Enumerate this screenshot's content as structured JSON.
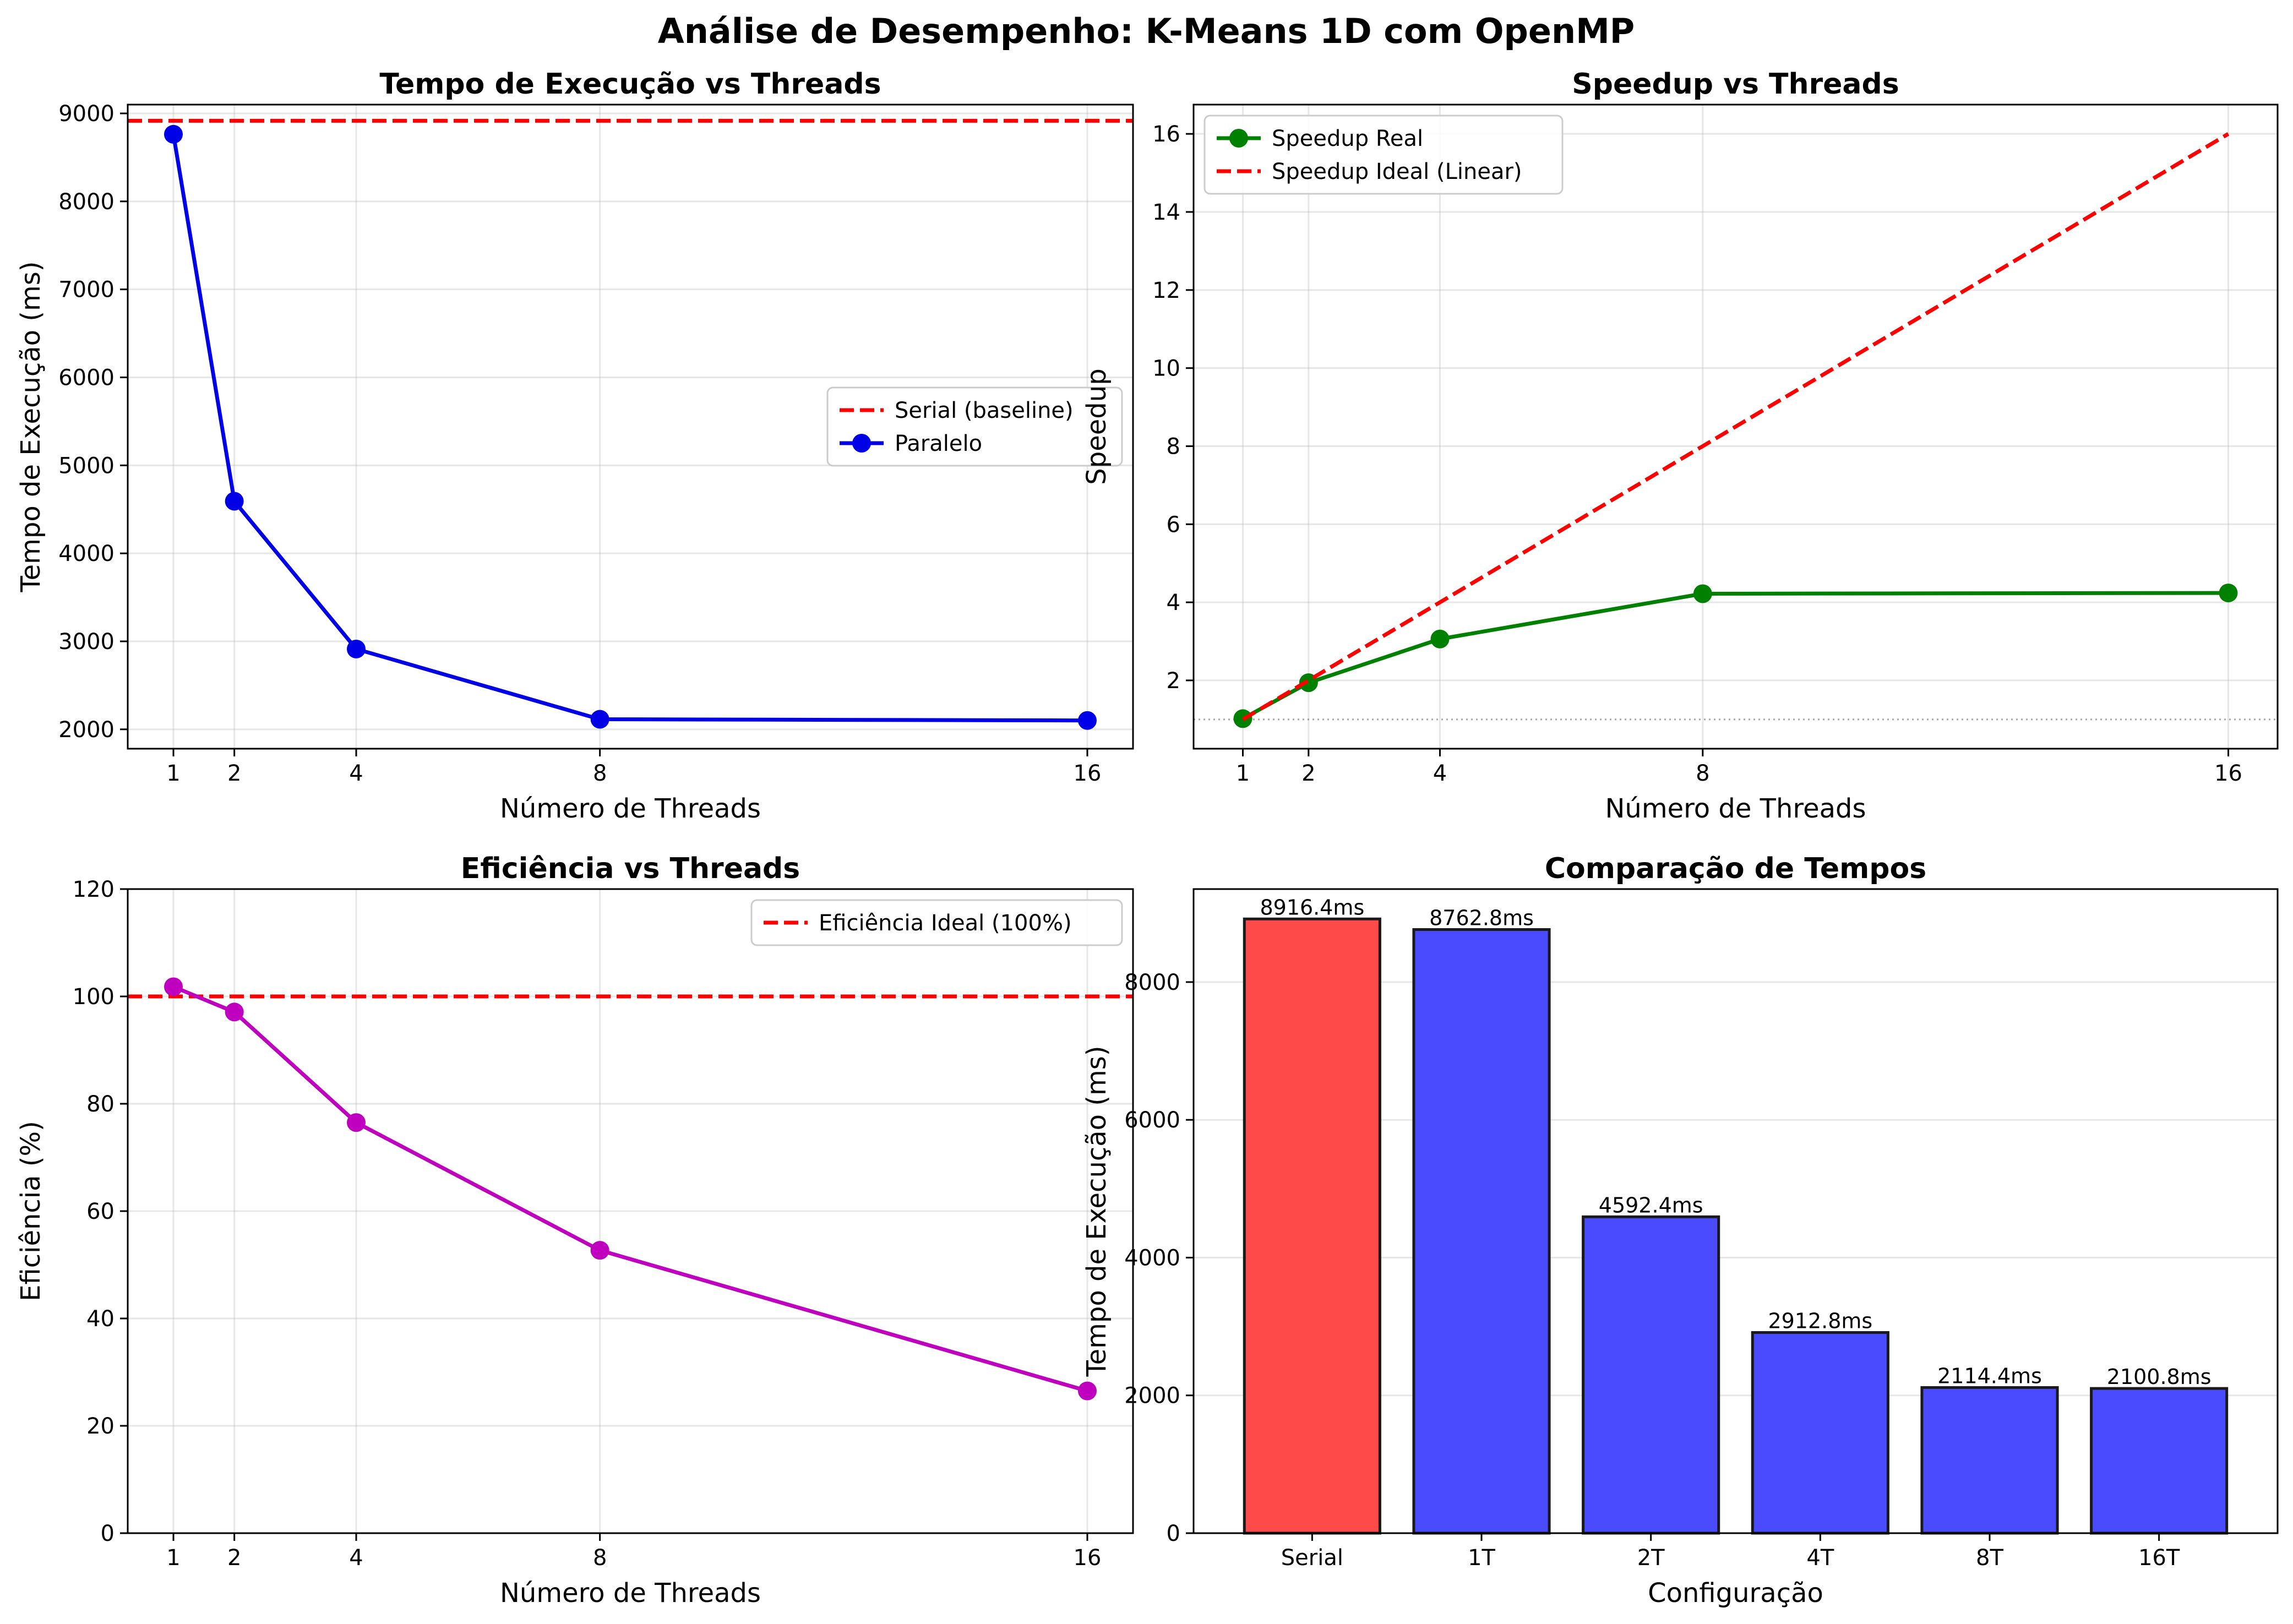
{
  "suptitle": "Análise de Desempenho: K-Means 1D com OpenMP",
  "colors": {
    "paralelo": "#0000e6",
    "serial": "#ff0000",
    "speedup": "#008000",
    "eficiencia": "#bf00bf",
    "bar_serial": "#ff4a4a",
    "bar_parallel": "#4a4aff"
  },
  "chart_data": [
    {
      "type": "line",
      "title": "Tempo de Execução vs Threads",
      "xlabel": "Número de Threads",
      "ylabel": "Tempo de Execução (ms)",
      "x": [
        1,
        2,
        4,
        8,
        16
      ],
      "xticks": [
        1,
        2,
        4,
        8,
        16
      ],
      "xlim": [
        0.25,
        16.75
      ],
      "ylim": [
        1780,
        9100
      ],
      "yticks": [
        2000,
        3000,
        4000,
        5000,
        6000,
        7000,
        8000,
        9000
      ],
      "grid": true,
      "legend_position": "center-right",
      "series": [
        {
          "name": "Paralelo",
          "values": [
            8762.8,
            4592.4,
            2912.8,
            2114.4,
            2100.8
          ],
          "style": "line-marker",
          "color": "#0000e6"
        }
      ],
      "hlines": [
        {
          "name": "Serial (baseline)",
          "y": 8916.4,
          "style": "dashed",
          "color": "#ff0000"
        }
      ]
    },
    {
      "type": "line",
      "title": "Speedup vs Threads",
      "xlabel": "Número de Threads",
      "ylabel": "Speedup",
      "x": [
        1,
        2,
        4,
        8,
        16
      ],
      "xticks": [
        1,
        2,
        4,
        8,
        16
      ],
      "xlim": [
        0.25,
        16.75
      ],
      "ylim": [
        0.25,
        16.75
      ],
      "yticks": [
        2,
        4,
        6,
        8,
        10,
        12,
        14,
        16
      ],
      "grid": true,
      "legend_position": "top-left",
      "series": [
        {
          "name": "Speedup Real",
          "values": [
            1.02,
            1.94,
            3.06,
            4.22,
            4.24
          ],
          "style": "line-marker",
          "color": "#008000"
        },
        {
          "name": "Speedup Ideal (Linear)",
          "values": [
            1,
            2,
            4,
            8,
            16
          ],
          "style": "dashed",
          "color": "#ff0000"
        }
      ],
      "hlines": [
        {
          "y": 1,
          "style": "dotted",
          "color": "#808080"
        }
      ]
    },
    {
      "type": "line",
      "title": "Eficiência vs Threads",
      "xlabel": "Número de Threads",
      "ylabel": "Eficiência (%)",
      "x": [
        1,
        2,
        4,
        8,
        16
      ],
      "xticks": [
        1,
        2,
        4,
        8,
        16
      ],
      "xlim": [
        0.25,
        16.75
      ],
      "ylim": [
        0,
        120
      ],
      "yticks": [
        0,
        20,
        40,
        60,
        80,
        100,
        120
      ],
      "grid": true,
      "legend_position": "top-right",
      "series": [
        {
          "name": "",
          "values": [
            101.8,
            97.1,
            76.5,
            52.7,
            26.5
          ],
          "style": "line-marker",
          "color": "#bf00bf"
        }
      ],
      "hlines": [
        {
          "name": "Eficiência Ideal (100%)",
          "y": 100,
          "style": "dashed",
          "color": "#ff0000"
        }
      ]
    },
    {
      "type": "bar",
      "title": "Comparação de Tempos",
      "xlabel": "Configuração",
      "ylabel": "Tempo de Execução (ms)",
      "categories": [
        "Serial",
        "1T",
        "2T",
        "4T",
        "8T",
        "16T"
      ],
      "values": [
        8916.4,
        8762.8,
        4592.4,
        2912.8,
        2114.4,
        2100.8
      ],
      "data_labels": [
        "8916.4ms",
        "8762.8ms",
        "4592.4ms",
        "2912.8ms",
        "2114.4ms",
        "2100.8ms"
      ],
      "bar_colors": [
        "#ff4a4a",
        "#4a4aff",
        "#4a4aff",
        "#4a4aff",
        "#4a4aff",
        "#4a4aff"
      ],
      "ylim": [
        0,
        9350
      ],
      "yticks": [
        0,
        2000,
        4000,
        6000,
        8000
      ],
      "grid": true
    }
  ]
}
